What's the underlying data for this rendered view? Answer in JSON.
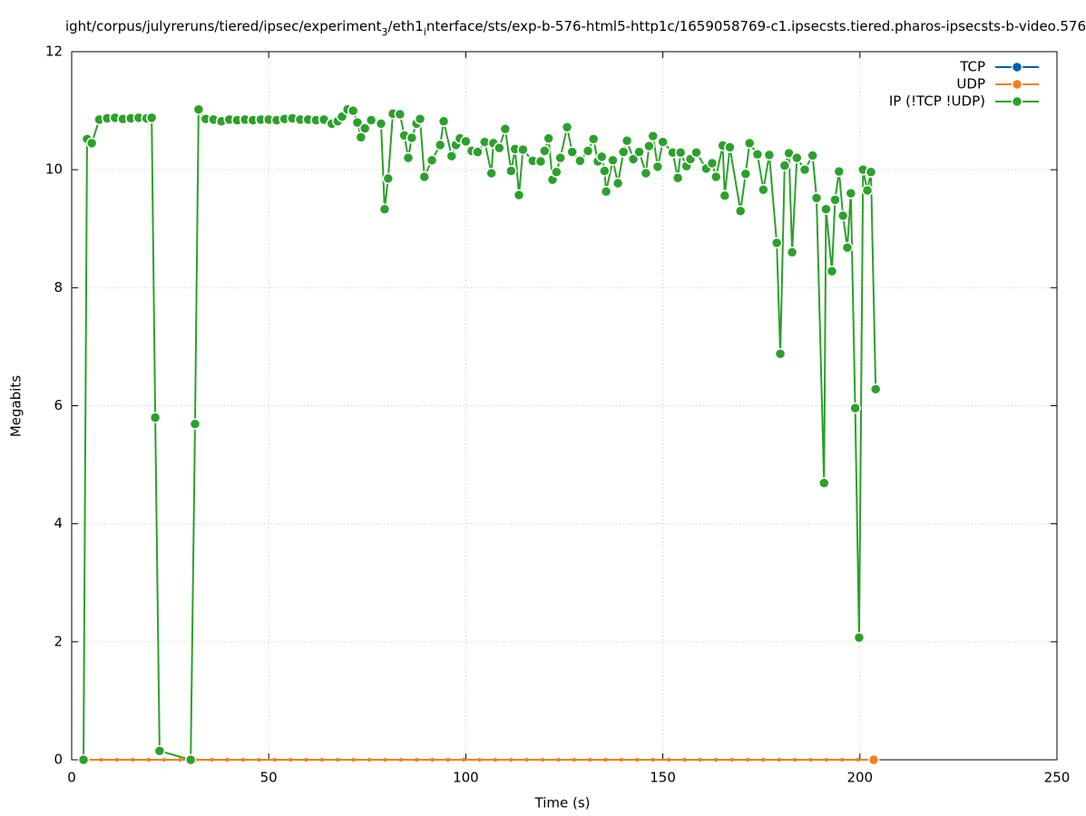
{
  "chart_data": {
    "type": "line",
    "title": [
      "ight/corpus/julyreruns/tiered/ipsec/experiment",
      "3",
      "/eth1",
      "i",
      "nterface/sts/exp-b-576-html5-http1c/1659058769-c1.ipsecsts.tiered.pharos-ipsecsts-b-video.576"
    ],
    "x_label": "Time (s)",
    "y_label": "Megabits",
    "xlim": [
      0,
      250
    ],
    "xticks": [
      0,
      50,
      100,
      150,
      200,
      250
    ],
    "ylim": [
      0,
      12
    ],
    "yticks": [
      0,
      2,
      4,
      6,
      8,
      10,
      12
    ],
    "grid": true,
    "legend": "top-right",
    "series": [
      {
        "name": "TCP",
        "color": "#0060ad",
        "x": [],
        "values": []
      },
      {
        "name": "UDP",
        "color": "#f0821e",
        "x": [
          3.5,
          7.5,
          11.5,
          15.5,
          19.5,
          23.5,
          27.5,
          31.5,
          35.5,
          39.5,
          43.5,
          47.5,
          51.5,
          55.5,
          59.5,
          63.5,
          67.5,
          71.5,
          75.5,
          79.5,
          83.5,
          87.5,
          91.5,
          95.5,
          99.5,
          103.5,
          107.5,
          111.5,
          115.5,
          119.5,
          123.5,
          127.5,
          131.5,
          135.5,
          139.5,
          143.5,
          147.5,
          151.5,
          155.5,
          159.5,
          163.5,
          167.5,
          171.5,
          175.5,
          179.5,
          183.5,
          187.5,
          191.5,
          195.5,
          199.5,
          203.5
        ],
        "values": [
          0,
          0,
          0,
          0,
          0,
          0,
          0,
          0,
          0,
          0,
          0,
          0,
          0,
          0,
          0,
          0,
          0,
          0,
          0,
          0,
          0,
          0,
          0,
          0,
          0,
          0,
          0,
          0,
          0,
          0,
          0,
          0,
          0,
          0,
          0,
          0,
          0,
          0,
          0,
          0,
          0,
          0,
          0,
          0,
          0,
          0,
          0,
          0,
          0,
          0,
          0
        ]
      },
      {
        "name": "IP (!TCP  !UDP)",
        "color": "#2ca02c",
        "x": [
          3.0,
          3.9,
          5.1,
          7,
          9,
          11,
          13,
          15,
          17,
          19,
          20.3,
          21.2,
          22.3,
          30.2,
          31.3,
          32.2,
          34,
          36,
          38,
          40,
          42,
          44,
          46,
          48,
          50,
          52,
          54,
          56,
          58,
          60,
          62,
          64,
          66,
          67.5,
          68.6,
          70,
          71.4,
          72.5,
          73.4,
          74.4,
          76,
          78.5,
          79.4,
          80.3,
          81.5,
          83.3,
          84.4,
          85.4,
          86.3,
          87.5,
          88.4,
          89.5,
          91.4,
          93.5,
          94.4,
          96.4,
          97.5,
          98.5,
          100,
          101.5,
          103,
          104.8,
          106.5,
          107,
          108.5,
          110,
          111.5,
          112.5,
          113.5,
          114.5,
          117,
          119,
          120,
          121,
          122,
          123,
          124,
          125.7,
          127,
          129,
          131,
          132.4,
          133.5,
          134.5,
          135.2,
          135.6,
          137.3,
          138.6,
          140,
          140.9,
          142.5,
          144,
          145.7,
          146.5,
          147.5,
          148.7,
          150,
          152.5,
          153.8,
          154.5,
          156,
          157,
          158.5,
          161,
          162.5,
          163.5,
          165.2,
          165.7,
          167,
          169.7,
          171,
          172,
          174,
          175.5,
          177,
          178.9,
          179.8,
          180.9,
          182,
          182.8,
          184,
          186,
          188,
          189,
          190.9,
          191.4,
          192.9,
          193.7,
          194.7,
          195.7,
          196.8,
          197.7,
          198.8,
          199.8,
          200.8,
          201.9,
          202.8,
          204
        ],
        "values": [
          0,
          10.52,
          10.45,
          10.85,
          10.87,
          10.88,
          10.86,
          10.87,
          10.88,
          10.87,
          10.88,
          5.8,
          0.15,
          0,
          5.69,
          11.02,
          10.86,
          10.85,
          10.82,
          10.85,
          10.84,
          10.85,
          10.84,
          10.85,
          10.85,
          10.84,
          10.86,
          10.87,
          10.85,
          10.85,
          10.84,
          10.85,
          10.78,
          10.82,
          10.9,
          11.02,
          11.0,
          10.8,
          10.55,
          10.7,
          10.84,
          10.78,
          9.33,
          9.85,
          10.95,
          10.94,
          10.58,
          10.2,
          10.54,
          10.78,
          10.86,
          9.88,
          10.16,
          10.42,
          10.82,
          10.23,
          10.42,
          10.53,
          10.48,
          10.32,
          10.3,
          10.47,
          9.94,
          10.45,
          10.37,
          10.69,
          9.98,
          10.35,
          9.57,
          10.34,
          10.15,
          10.14,
          10.32,
          10.53,
          9.83,
          9.96,
          10.2,
          10.72,
          10.3,
          10.15,
          10.32,
          10.52,
          10.14,
          10.22,
          9.98,
          9.63,
          10.16,
          9.77,
          10.3,
          10.49,
          10.18,
          10.3,
          9.94,
          10.4,
          10.57,
          10.05,
          10.47,
          10.29,
          9.86,
          10.29,
          10.06,
          10.18,
          10.29,
          10.02,
          10.11,
          9.88,
          10.41,
          9.56,
          10.38,
          9.3,
          9.93,
          10.45,
          10.26,
          9.66,
          10.25,
          8.76,
          6.88,
          10.07,
          10.28,
          8.6,
          10.2,
          10.0,
          10.24,
          9.52,
          4.69,
          9.33,
          8.28,
          9.49,
          9.97,
          9.22,
          8.68,
          9.6,
          5.96,
          2.07,
          10.0,
          9.65,
          9.96,
          6.28
        ]
      }
    ]
  }
}
